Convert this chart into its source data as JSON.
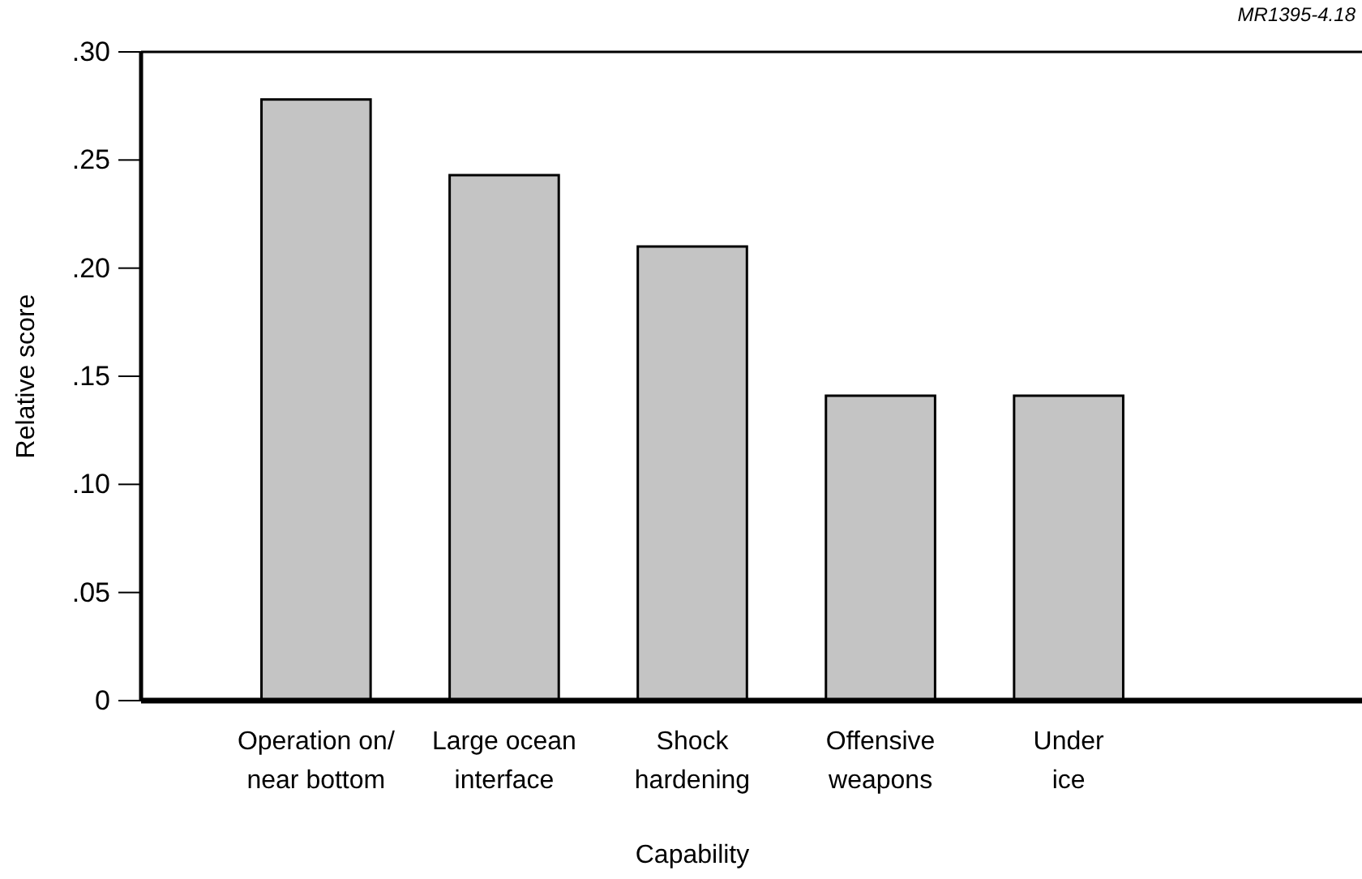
{
  "chart_data": {
    "type": "bar",
    "xlabel": "Capability",
    "ylabel": "Relative score",
    "categories": [
      "Operation on/\nnear bottom",
      "Large ocean\ninterface",
      "Shock\nhardening",
      "Offensive\nweapons",
      "Under\nice"
    ],
    "values": [
      0.278,
      0.243,
      0.21,
      0.141,
      0.141
    ],
    "color": "#c4c4c4",
    "ylim": [
      0,
      0.3
    ],
    "yticks": [
      {
        "value": 0,
        "label": "0"
      },
      {
        "value": 0.05,
        "label": ".05"
      },
      {
        "value": 0.1,
        "label": ".10"
      },
      {
        "value": 0.15,
        "label": ".15"
      },
      {
        "value": 0.2,
        "label": ".20"
      },
      {
        "value": 0.25,
        "label": ".25"
      },
      {
        "value": 0.3,
        "label": ".30"
      }
    ],
    "grid": false,
    "annotations": [
      "MR1395-4.18"
    ]
  }
}
